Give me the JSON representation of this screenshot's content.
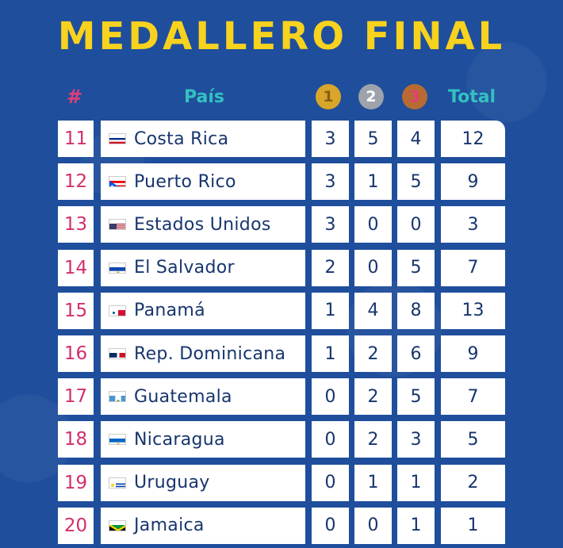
{
  "title": "MEDALLERO FINAL",
  "header": {
    "rank": "#",
    "country": "País",
    "gold": "1",
    "silver": "2",
    "bronze": "3",
    "total": "Total"
  },
  "colors": {
    "background": "#1f4e9c",
    "title": "#f7d21e",
    "header_accent": "#34c1c0",
    "rank_accent": "#e23d77",
    "gold": "#d9a52a",
    "silver": "#9ea3ab",
    "bronze": "#b86a33"
  },
  "rows": [
    {
      "rank": "11",
      "country": "Costa Rica",
      "flag": "costa-rica-flag-icon",
      "gold": "3",
      "silver": "5",
      "bronze": "4",
      "total": "12"
    },
    {
      "rank": "12",
      "country": "Puerto Rico",
      "flag": "puerto-rico-flag-icon",
      "gold": "3",
      "silver": "1",
      "bronze": "5",
      "total": "9"
    },
    {
      "rank": "13",
      "country": "Estados Unidos",
      "flag": "usa-flag-icon",
      "gold": "3",
      "silver": "0",
      "bronze": "0",
      "total": "3"
    },
    {
      "rank": "14",
      "country": "El Salvador",
      "flag": "el-salvador-flag-icon",
      "gold": "2",
      "silver": "0",
      "bronze": "5",
      "total": "7"
    },
    {
      "rank": "15",
      "country": "Panamá",
      "flag": "panama-flag-icon",
      "gold": "1",
      "silver": "4",
      "bronze": "8",
      "total": "13"
    },
    {
      "rank": "16",
      "country": "Rep. Dominicana",
      "flag": "dominican-republic-flag-icon",
      "gold": "1",
      "silver": "2",
      "bronze": "6",
      "total": "9"
    },
    {
      "rank": "17",
      "country": "Guatemala",
      "flag": "guatemala-flag-icon",
      "gold": "0",
      "silver": "2",
      "bronze": "5",
      "total": "7"
    },
    {
      "rank": "18",
      "country": "Nicaragua",
      "flag": "nicaragua-flag-icon",
      "gold": "0",
      "silver": "2",
      "bronze": "3",
      "total": "5"
    },
    {
      "rank": "19",
      "country": "Uruguay",
      "flag": "uruguay-flag-icon",
      "gold": "0",
      "silver": "1",
      "bronze": "1",
      "total": "2"
    },
    {
      "rank": "20",
      "country": "Jamaica",
      "flag": "jamaica-flag-icon",
      "gold": "0",
      "silver": "0",
      "bronze": "1",
      "total": "1"
    }
  ]
}
